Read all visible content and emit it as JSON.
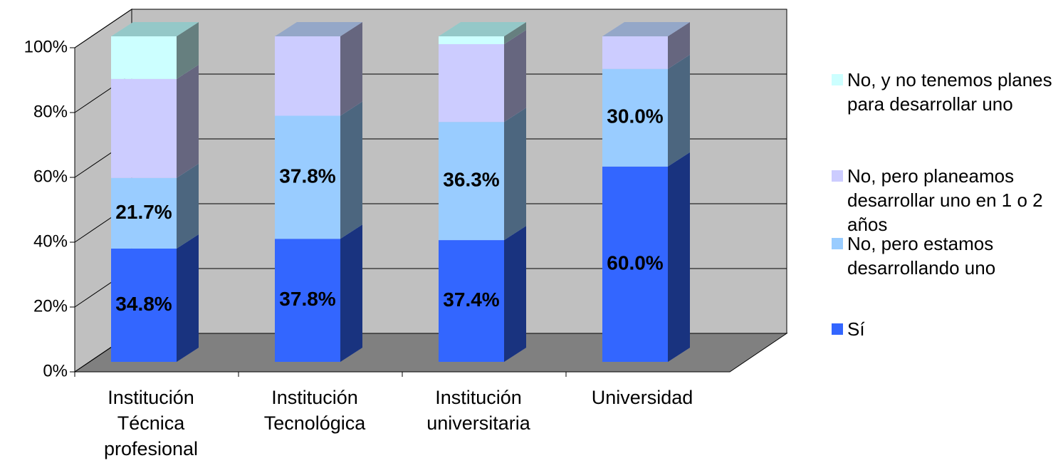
{
  "chart_data": {
    "type": "bar3d_stacked",
    "categories": [
      "Institución Técnica profesional",
      "Institución Tecnológica",
      "Institución universitaria",
      "Universidad"
    ],
    "series": [
      {
        "name": "Sí",
        "color": "#3366ff",
        "values": [
          34.8,
          37.8,
          37.4,
          60.0
        ],
        "value_labels": [
          "34.8%",
          "37.8%",
          "37.4%",
          "60.0%"
        ]
      },
      {
        "name": "No, pero estamos desarrollando uno",
        "color": "#99ccff",
        "values": [
          21.7,
          37.8,
          36.3,
          30.0
        ],
        "value_labels": [
          "21.7%",
          "37.8%",
          "36.3%",
          "30.0%"
        ]
      },
      {
        "name": "No, pero planeamos desarrollar uno en 1 o 2 años",
        "color": "#ccccff",
        "values": [
          30.4,
          24.4,
          23.9,
          10.0
        ],
        "value_labels": [
          null,
          null,
          null,
          null
        ]
      },
      {
        "name": "No, y no tenemos planes para desarrollar uno",
        "color": "#ccffff",
        "values": [
          13.1,
          0,
          2.4,
          0
        ],
        "value_labels": [
          null,
          null,
          null,
          null
        ]
      }
    ],
    "ylim": [
      0,
      100
    ],
    "yticks": [
      {
        "value": 0,
        "label": "0%"
      },
      {
        "value": 20,
        "label": "20%"
      },
      {
        "value": 40,
        "label": "40%"
      },
      {
        "value": 60,
        "label": "60%"
      },
      {
        "value": 80,
        "label": "80%"
      },
      {
        "value": 100,
        "label": "100%"
      }
    ],
    "grid": true,
    "legend": "right"
  }
}
